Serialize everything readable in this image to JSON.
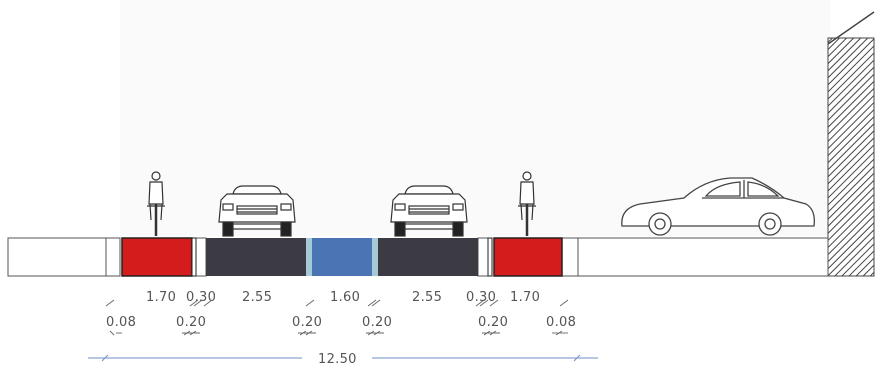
{
  "colors": {
    "cycle_lane": "#d41c1c",
    "car_lane": "#3c3a42",
    "median": "#4a74b4",
    "separator_strip": "#a6c9d8",
    "outline": "#555555",
    "dimension_line": "#6f8fc7",
    "wall_hatch": "#444444"
  },
  "icons": [
    "cyclist-icon",
    "car-front-icon",
    "car-side-icon",
    "hatched-wall"
  ],
  "dimensions": {
    "row1": [
      "1.70",
      "0.30",
      "2.55",
      "1.60",
      "2.55",
      "0.30",
      "1.70"
    ],
    "row2": [
      "0.08",
      "0.20",
      "0.20",
      "0.20",
      "0.20",
      "0.08"
    ],
    "total": "12.50"
  }
}
